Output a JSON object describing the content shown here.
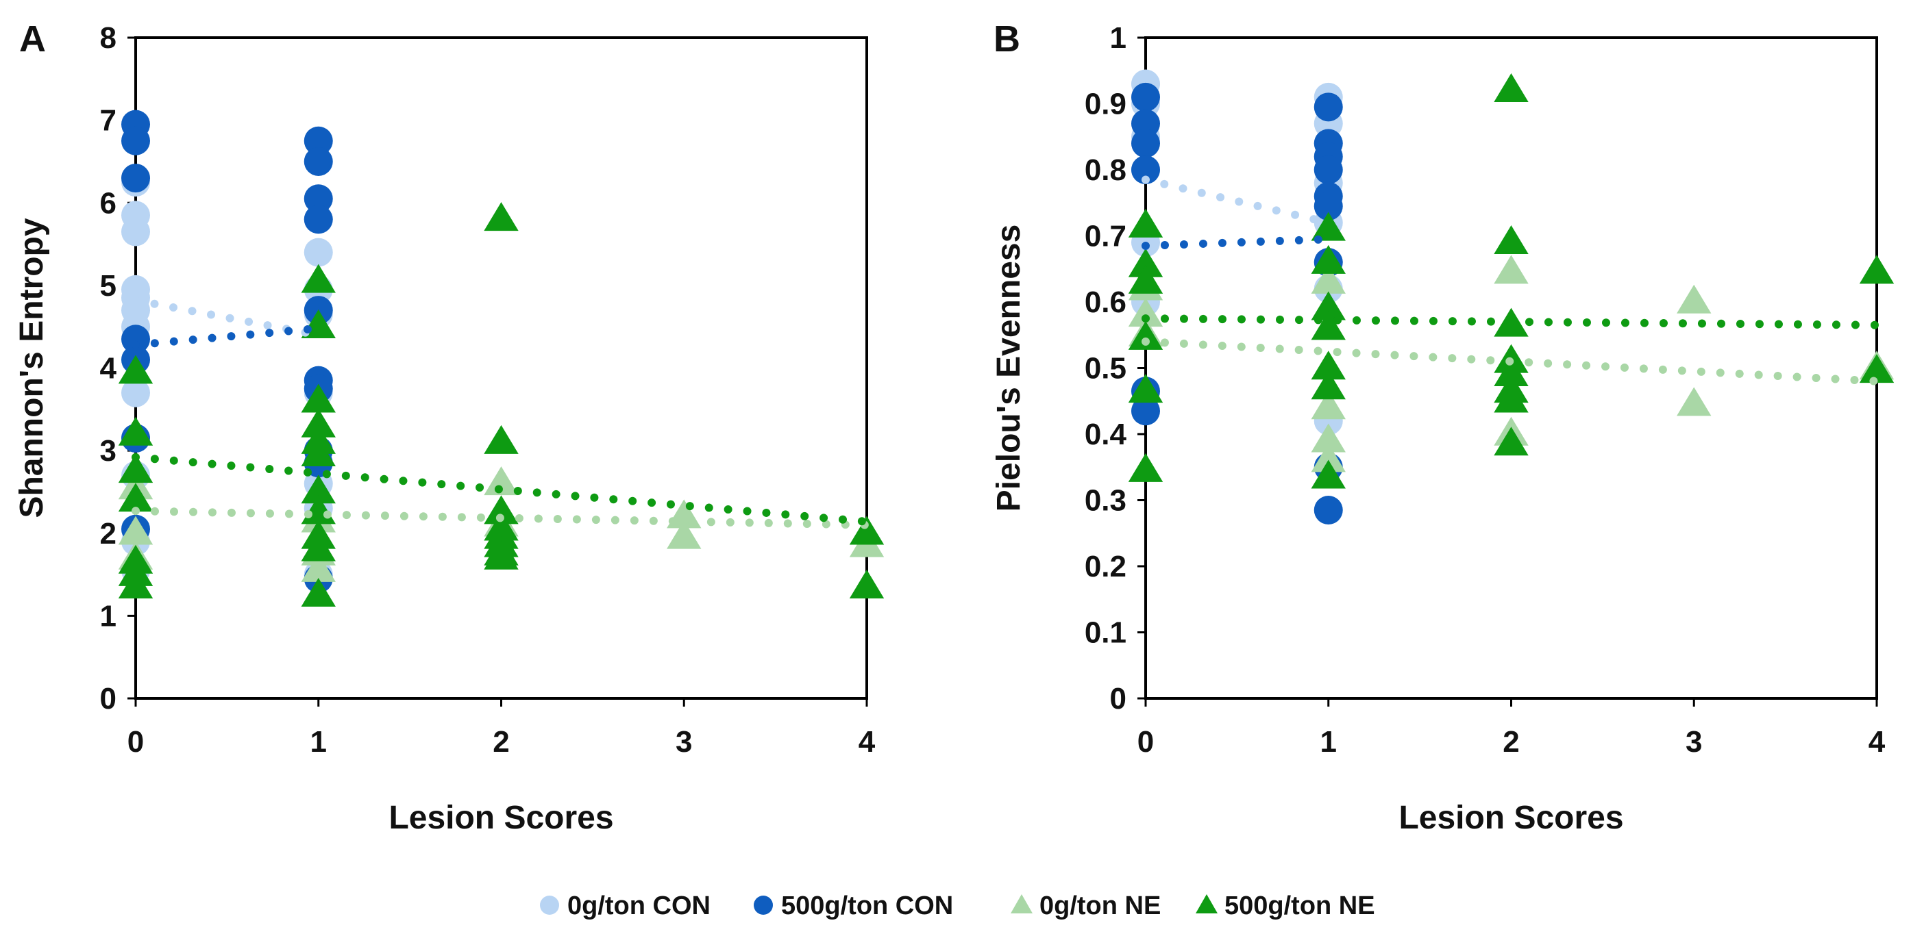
{
  "legend": [
    {
      "label": "0g/ton CON",
      "marker": "circle",
      "color": "#b8d4f3"
    },
    {
      "label": "500g/ton CON",
      "marker": "circle",
      "color": "#0f5dbf"
    },
    {
      "label": "0g/ton NE",
      "marker": "triangle",
      "color": "#a9d7a6"
    },
    {
      "label": "500g/ton NE",
      "marker": "triangle",
      "color": "#0e9b12"
    }
  ],
  "chart_data": [
    {
      "type": "scatter",
      "panel": "A",
      "title": "",
      "xlabel": "Lesion Scores",
      "ylabel": "Shannon's Entropy",
      "xlim": [
        0,
        4
      ],
      "ylim": [
        0,
        8
      ],
      "xticks": [
        0,
        1,
        2,
        3,
        4
      ],
      "yticks": [
        0,
        1,
        2,
        3,
        4,
        5,
        6,
        7,
        8
      ],
      "series": [
        {
          "name": "0g/ton CON",
          "marker": "circle",
          "color": "#b8d4f3",
          "x": [
            0,
            0,
            0,
            0,
            0,
            0,
            0,
            0,
            0,
            0,
            0,
            0,
            1,
            1,
            1,
            1,
            1,
            1,
            1,
            1
          ],
          "y": [
            6.25,
            5.85,
            5.65,
            4.95,
            4.85,
            4.7,
            4.5,
            3.7,
            3.15,
            2.7,
            1.9,
            1.55,
            5.8,
            5.4,
            4.95,
            4.65,
            3.7,
            2.6,
            2.3,
            1.5
          ],
          "trend": {
            "x": [
              0,
              1
            ],
            "y": [
              4.82,
              4.4
            ]
          }
        },
        {
          "name": "500g/ton CON",
          "marker": "circle",
          "color": "#0f5dbf",
          "x": [
            0,
            0,
            0,
            0,
            0,
            0,
            0,
            1,
            1,
            1,
            1,
            1,
            1,
            1,
            1,
            1,
            1
          ],
          "y": [
            6.95,
            6.75,
            6.3,
            4.35,
            4.1,
            3.15,
            2.05,
            6.75,
            6.5,
            6.05,
            5.8,
            4.7,
            3.85,
            3.75,
            3.0,
            2.85,
            1.45
          ],
          "trend": {
            "x": [
              0,
              1
            ],
            "y": [
              4.28,
              4.48
            ]
          }
        },
        {
          "name": "0g/ton NE",
          "marker": "triangle",
          "color": "#a9d7a6",
          "x": [
            0,
            0,
            0,
            1,
            1,
            1,
            2,
            2,
            3,
            3,
            4
          ],
          "y": [
            2.55,
            2.0,
            1.7,
            2.15,
            1.75,
            1.55,
            2.6,
            2.1,
            2.2,
            1.95,
            1.85
          ],
          "trend": {
            "x": [
              0,
              4
            ],
            "y": [
              2.27,
              2.1
            ]
          }
        },
        {
          "name": "500g/ton NE",
          "marker": "triangle",
          "color": "#0e9b12",
          "x": [
            0,
            0,
            0,
            0,
            0,
            0,
            0,
            1,
            1,
            1,
            1,
            1,
            1,
            1,
            1,
            1,
            1,
            1,
            2,
            2,
            2,
            2,
            2,
            2,
            2,
            2,
            4,
            4
          ],
          "y": [
            3.95,
            3.2,
            2.75,
            2.4,
            1.65,
            1.5,
            1.35,
            5.05,
            4.5,
            3.6,
            3.3,
            3.1,
            2.95,
            2.5,
            2.25,
            1.95,
            1.8,
            1.25,
            5.8,
            3.1,
            2.25,
            2.05,
            1.95,
            1.85,
            1.75,
            1.7,
            2.0,
            1.35
          ],
          "trend": {
            "x": [
              0,
              4
            ],
            "y": [
              2.92,
              2.14
            ]
          }
        }
      ]
    },
    {
      "type": "scatter",
      "panel": "B",
      "title": "",
      "xlabel": "Lesion Scores",
      "ylabel": "Pielou's Evenness",
      "xlim": [
        0,
        4
      ],
      "ylim": [
        0,
        1
      ],
      "xticks": [
        0,
        1,
        2,
        3,
        4
      ],
      "yticks": [
        0,
        0.1,
        0.2,
        0.3,
        0.4,
        0.5,
        0.6,
        0.7,
        0.8,
        0.9,
        1
      ],
      "series": [
        {
          "name": "0g/ton CON",
          "marker": "circle",
          "color": "#b8d4f3",
          "x": [
            0,
            0,
            0,
            0,
            0,
            0,
            1,
            1,
            1,
            1,
            1,
            1,
            1
          ],
          "y": [
            0.93,
            0.9,
            0.85,
            0.8,
            0.69,
            0.6,
            0.91,
            0.87,
            0.84,
            0.78,
            0.72,
            0.62,
            0.42
          ],
          "trend": {
            "x": [
              0,
              1
            ],
            "y": [
              0.785,
              0.72
            ]
          }
        },
        {
          "name": "500g/ton CON",
          "marker": "circle",
          "color": "#0f5dbf",
          "x": [
            0,
            0,
            0,
            0,
            0,
            0,
            1,
            1,
            1,
            1,
            1,
            1,
            1,
            1,
            1
          ],
          "y": [
            0.91,
            0.87,
            0.84,
            0.8,
            0.465,
            0.435,
            0.285,
            0.895,
            0.84,
            0.82,
            0.8,
            0.76,
            0.745,
            0.66,
            0.35
          ],
          "trend": {
            "x": [
              0,
              1
            ],
            "y": [
              0.685,
              0.695
            ]
          }
        },
        {
          "name": "0g/ton NE",
          "marker": "triangle",
          "color": "#a9d7a6",
          "x": [
            0,
            0,
            0,
            1,
            1,
            1,
            1,
            2,
            2,
            3,
            3,
            4
          ],
          "y": [
            0.62,
            0.58,
            0.55,
            0.63,
            0.44,
            0.39,
            0.36,
            0.645,
            0.4,
            0.6,
            0.445,
            0.5
          ],
          "trend": {
            "x": [
              0,
              4
            ],
            "y": [
              0.54,
              0.48
            ]
          }
        },
        {
          "name": "500g/ton NE",
          "marker": "triangle",
          "color": "#0e9b12",
          "x": [
            0,
            0,
            0,
            0,
            0,
            0,
            1,
            1,
            1,
            1,
            1,
            1,
            1,
            2,
            2,
            2,
            2,
            2,
            2,
            2,
            2,
            4,
            4
          ],
          "y": [
            0.715,
            0.655,
            0.63,
            0.545,
            0.465,
            0.345,
            0.71,
            0.66,
            0.59,
            0.56,
            0.5,
            0.47,
            0.335,
            0.92,
            0.69,
            0.565,
            0.51,
            0.49,
            0.465,
            0.45,
            0.385,
            0.645,
            0.495
          ],
          "trend": {
            "x": [
              0,
              4
            ],
            "y": [
              0.575,
              0.565
            ]
          }
        }
      ]
    }
  ]
}
